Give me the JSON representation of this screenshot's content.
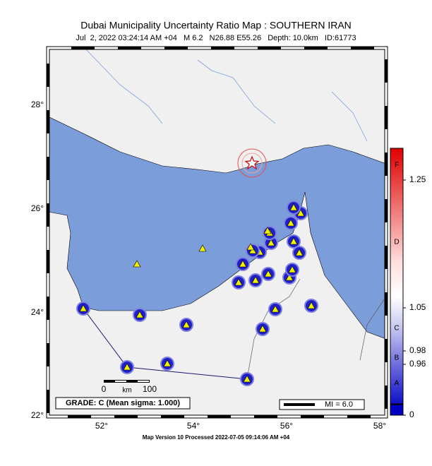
{
  "header": {
    "title": "Dubai Municipality Uncertainty Ratio Map : SOUTHERN IRAN",
    "subtitle": "Jul  2, 2022 03:24:14 AM +04   M 6.2   N26.88 E55.26   Depth: 10.0km   ID:61773"
  },
  "axes": {
    "lon_labels": [
      "52°",
      "54°",
      "56°",
      "58°"
    ],
    "lat_labels": [
      "28°",
      "26°",
      "24°",
      "22°"
    ]
  },
  "scale_bar": {
    "labels": [
      "0",
      "100"
    ],
    "unit": "km"
  },
  "grade": "GRADE: C (Mean sigma: 1.000)",
  "legend": "MI = 6.0",
  "colorbar": {
    "letters": [
      "F",
      "D",
      "C",
      "B",
      "A"
    ],
    "values": [
      "1.25",
      "1.05",
      "0.98",
      "0.96",
      "0"
    ]
  },
  "footer": "Map Version 10 Processed 2022-07-05 09:14:06 AM +04"
}
